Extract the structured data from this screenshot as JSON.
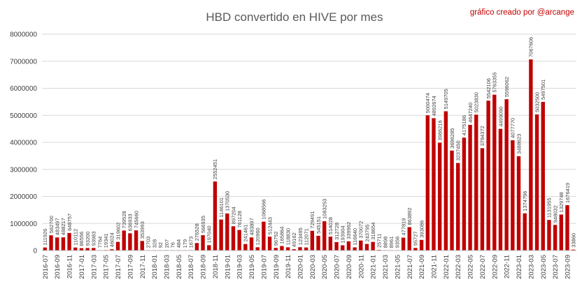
{
  "chart_data": {
    "type": "bar",
    "title": "HBD convertido en HIVE por mes",
    "credit": "gráfico creado por @arcange",
    "ylim": [
      0,
      8000000
    ],
    "yticks": [
      0,
      1000000,
      2000000,
      3000000,
      4000000,
      5000000,
      6000000,
      7000000,
      8000000
    ],
    "grid": true,
    "legend": "none",
    "bar_color": "#c00000",
    "categories": [
      "2016-07",
      "2016-08",
      "2016-09",
      "2016-10",
      "2016-11",
      "2016-12",
      "2017-01",
      "2017-02",
      "2017-03",
      "2017-04",
      "2017-05",
      "2017-06",
      "2017-07",
      "2017-08",
      "2017-09",
      "2017-10",
      "2017-11",
      "2017-12",
      "2018-01",
      "2018-02",
      "2018-03",
      "2018-04",
      "2018-05",
      "2018-06",
      "2018-07",
      "2018-08",
      "2018-09",
      "2018-10",
      "2018-11",
      "2018-12",
      "2019-01",
      "2019-02",
      "2019-03",
      "2019-04",
      "2019-05",
      "2019-06",
      "2019-07",
      "2019-08",
      "2019-09",
      "2019-10",
      "2019-11",
      "2019-12",
      "2020-01",
      "2020-02",
      "2020-03",
      "2020-04",
      "2020-05",
      "2020-06",
      "2020-07",
      "2020-08",
      "2020-09",
      "2020-10",
      "2020-11",
      "2020-12",
      "2021-01",
      "2021-02",
      "2021-03",
      "2021-04",
      "2021-05",
      "2021-06",
      "2021-07",
      "2021-08",
      "2021-09",
      "2021-10",
      "2021-11",
      "2021-12",
      "2022-01",
      "2022-02",
      "2022-03",
      "2022-04",
      "2022-05",
      "2022-06",
      "2022-07",
      "2022-08",
      "2022-09",
      "2022-10",
      "2022-11",
      "2022-12",
      "2023-01",
      "2023-02",
      "2023-03",
      "2023-04",
      "2023-05",
      "2023-06",
      "2023-07",
      "2023-08",
      "2023-09",
      "2023-10"
    ],
    "xtick_labels": [
      "2016-07",
      "2016-09",
      "2016-11",
      "2017-01",
      "2017-03",
      "2017-05",
      "2017-07",
      "2017-09",
      "2017-11",
      "2018-01",
      "2018-03",
      "2018-05",
      "2018-07",
      "2018-09",
      "2018-11",
      "2019-01",
      "2019-03",
      "2019-05",
      "2019-07",
      "2019-09",
      "2019-11",
      "2020-01",
      "2020-03",
      "2020-05",
      "2020-07",
      "2020-09",
      "2020-11",
      "2021-01",
      "2021-03",
      "2021-05",
      "2021-07",
      "2021-09",
      "2021-11",
      "2022-01",
      "2022-03",
      "2022-05",
      "2022-07",
      "2022-09",
      "2022-11",
      "2023-01",
      "2023-03",
      "2023-05",
      "2023-07",
      "2023-09"
    ],
    "values": [
      111926,
      562700,
      483497,
      488217,
      648757,
      110112,
      86556,
      93200,
      93983,
      7764,
      19341,
      46024,
      319602,
      739528,
      636933,
      745660,
      353993,
      2703,
      328,
      92,
      207,
      76,
      484,
      179,
      1673,
      276528,
      566935,
      197040,
      2552451,
      1146101,
      1370530,
      897204,
      761128,
      241461,
      483897,
      120960,
      1068566,
      512443,
      96752,
      165864,
      118830,
      49162,
      123495,
      112071,
      729491,
      545151,
      1083253,
      514028,
      312728,
      193904,
      339962,
      116640,
      370072,
      243795,
      318654,
      25711,
      8898,
      8961,
      9356,
      477819,
      863892,
      95727,
      393086,
      5000474,
      4892674,
      3986216,
      5149705,
      3696285,
      3237450,
      4175186,
      4647240,
      5023830,
      3784372,
      5542106,
      5763355,
      4499090,
      5596062,
      4077770,
      3488623,
      1374796,
      7067606,
      5032500,
      5497501,
      1131955,
      948032,
      1329748,
      1676419,
      33860
    ]
  }
}
